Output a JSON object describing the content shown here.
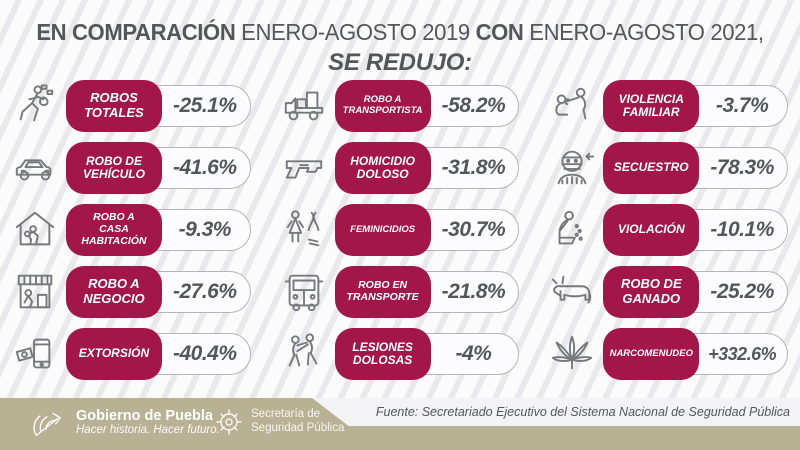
{
  "title": {
    "line1": [
      {
        "text": "EN COMPARACIÓN ",
        "bold": true
      },
      {
        "text": "ENERO-AGOSTO 2019 ",
        "bold": false
      },
      {
        "text": "CON ",
        "bold": true
      },
      {
        "text": "ENERO-AGOSTO 2021,",
        "bold": false
      }
    ],
    "line2": "SE REDUJO:"
  },
  "colors": {
    "accent_maroon": "#a31648",
    "text_gray": "#54565a",
    "footer_tan": "#b9b194",
    "icon_gray": "#77787c"
  },
  "columns": [
    {
      "items": [
        {
          "icon": "thief-running-icon",
          "label": "ROBOS\nTOTALES",
          "value": "-25.1%"
        },
        {
          "icon": "car-icon",
          "label": "ROBO DE\nVEHÍCULO",
          "value": "-41.6%"
        },
        {
          "icon": "house-burglar-icon",
          "label": "ROBO A\nCASA\nHABITACIÓN",
          "value": "-9.3%"
        },
        {
          "icon": "store-burglar-icon",
          "label": "ROBO A\nNEGOCIO",
          "value": "-27.6%"
        },
        {
          "icon": "money-phone-icon",
          "label": "EXTORSIÓN",
          "value": "-40.4%"
        }
      ]
    },
    {
      "items": [
        {
          "icon": "truck-icon",
          "label": "ROBO A\nTRANSPORTISTA",
          "value": "-58.2%"
        },
        {
          "icon": "gun-icon",
          "label": "HOMICIDIO\nDOLOSO",
          "value": "-31.8%"
        },
        {
          "icon": "woman-ribbon-icon",
          "label": "FEMINICIDIOS",
          "value": "-30.7%"
        },
        {
          "icon": "bus-icon",
          "label": "ROBO EN\nTRANSPORTE",
          "value": "-21.8%"
        },
        {
          "icon": "fight-icon",
          "label": "LESIONES\nDOLOSAS",
          "value": "-4%"
        }
      ]
    },
    {
      "items": [
        {
          "icon": "family-violence-icon",
          "label": "VIOLENCIA\nFAMILIAR",
          "value": "-3.7%"
        },
        {
          "icon": "kidnapper-icon",
          "label": "SECUESTRO",
          "value": "-78.3%"
        },
        {
          "icon": "kneeling-victim-icon",
          "label": "VIOLACIÓN",
          "value": "-10.1%"
        },
        {
          "icon": "cow-icon",
          "label": "ROBO DE\nGANADO",
          "value": "-25.2%"
        },
        {
          "icon": "cannabis-icon",
          "label": "NARCOMENUDEO",
          "value": "+332.6%"
        }
      ]
    }
  ],
  "footer": {
    "source": "Fuente: Secretariado Ejecutivo del Sistema Nacional de Seguridad Pública",
    "gov_name": "Gobierno de Puebla",
    "gov_tagline": "Hacer historia. Hacer futuro.",
    "secretariat_line1": "Secretaría de",
    "secretariat_line2": "Seguridad Pública"
  },
  "chart_data": {
    "type": "table",
    "title": "EN COMPARACIÓN ENERO-AGOSTO 2019 CON ENERO-AGOSTO 2021, SE REDUJO:",
    "categories": [
      "Robos totales",
      "Robo de vehículo",
      "Robo a casa habitación",
      "Robo a negocio",
      "Extorsión",
      "Robo a transportista",
      "Homicidio doloso",
      "Feminicidios",
      "Robo en transporte",
      "Lesiones dolosas",
      "Violencia familiar",
      "Secuestro",
      "Violación",
      "Robo de ganado",
      "Narcomenudeo"
    ],
    "values_percent_change": [
      -25.1,
      -41.6,
      -9.3,
      -27.6,
      -40.4,
      -58.2,
      -31.8,
      -30.7,
      -21.8,
      -4,
      -3.7,
      -78.3,
      -10.1,
      -25.2,
      332.6
    ],
    "units": "percent change vs. same period",
    "source": "Fuente: Secretariado Ejecutivo del Sistema Nacional de Seguridad Pública"
  }
}
